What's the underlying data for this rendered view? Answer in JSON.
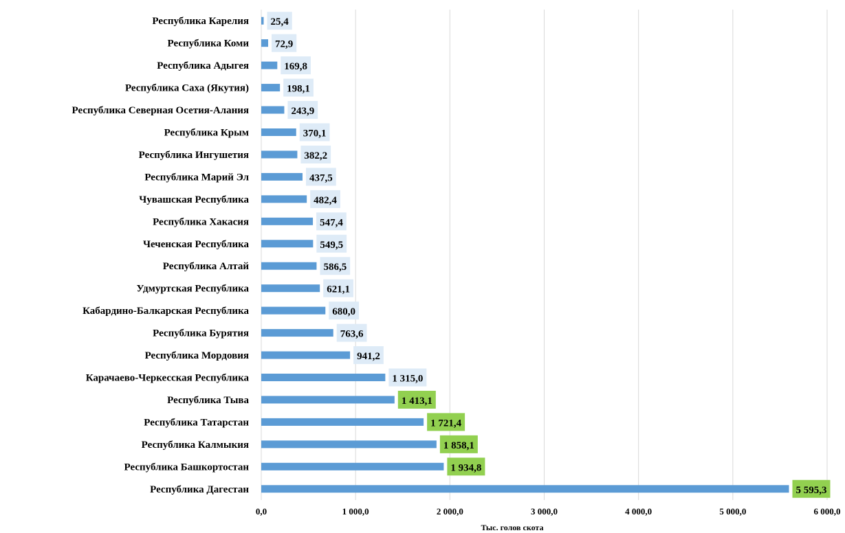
{
  "chart_data": {
    "type": "bar",
    "orientation": "horizontal",
    "categories": [
      "Республика Карелия",
      "Республика Коми",
      "Республика Адыгея",
      "Республика Саха (Якутия)",
      "Республика Северная Осетия-Алания",
      "Республика Крым",
      "Республика Ингушетия",
      "Республика Марий Эл",
      "Чувашская Республика",
      "Республика Хакасия",
      "Чеченская Республика",
      "Республика Алтай",
      "Удмуртская Республика",
      "Кабардино-Балкарская Республика",
      "Республика Бурятия",
      "Республика Мордовия",
      "Карачаево-Черкесская Республика",
      "Республика Тыва",
      "Республика Татарстан",
      "Республика Калмыкия",
      "Республика Башкортостан",
      "Республика Дагестан"
    ],
    "values": [
      25.4,
      72.9,
      169.8,
      198.1,
      243.9,
      370.1,
      382.2,
      437.5,
      482.4,
      547.4,
      549.5,
      586.5,
      621.1,
      680.0,
      763.6,
      941.2,
      1315.0,
      1413.1,
      1721.4,
      1858.1,
      1934.8,
      5595.3
    ],
    "value_labels": [
      "25,4",
      "72,9",
      "169,8",
      "198,1",
      "243,9",
      "370,1",
      "382,2",
      "437,5",
      "482,4",
      "547,4",
      "549,5",
      "586,5",
      "621,1",
      "680,0",
      "763,6",
      "941,2",
      "1 315,0",
      "1 413,1",
      "1 721,4",
      "1 858,1",
      "1 934,8",
      "5 595,3"
    ],
    "highlighted": [
      false,
      false,
      false,
      false,
      false,
      false,
      false,
      false,
      false,
      false,
      false,
      false,
      false,
      false,
      false,
      false,
      false,
      true,
      true,
      true,
      true,
      true
    ],
    "xlabel": "Тыс. голов скота",
    "xlim": [
      0,
      6000
    ],
    "xticks": [
      0,
      1000,
      2000,
      3000,
      4000,
      5000,
      6000
    ],
    "xtick_labels": [
      "0,0",
      "1 000,0",
      "2 000,0",
      "3 000,0",
      "4 000,0",
      "5 000,0",
      "6 000,0"
    ],
    "grid": true,
    "legend": "none",
    "colors": {
      "bar": "#5b9bd5",
      "label_bg": "#deebf7",
      "label_bg_highlight": "#92d050",
      "gridline": "#d9d9d9"
    }
  }
}
